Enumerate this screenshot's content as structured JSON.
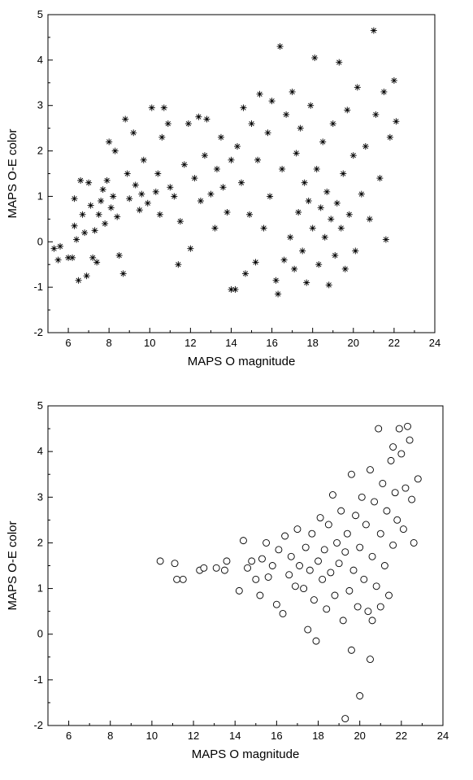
{
  "chart_data": [
    {
      "type": "scatter",
      "marker": "asterisk",
      "xlabel": "MAPS O magnitude",
      "ylabel": "MAPS O-E color",
      "xlim": [
        5,
        24
      ],
      "ylim": [
        -2,
        5
      ],
      "xticks": [
        "6",
        "8",
        "10",
        "12",
        "14",
        "16",
        "18",
        "20",
        "22",
        "24"
      ],
      "yticks": [
        "-2",
        "-1",
        "0",
        "1",
        "2",
        "3",
        "4",
        "5"
      ],
      "grid": false,
      "points": [
        [
          5.3,
          -0.15
        ],
        [
          5.5,
          -0.4
        ],
        [
          5.6,
          -0.1
        ],
        [
          6.0,
          -0.35
        ],
        [
          6.2,
          -0.35
        ],
        [
          6.3,
          0.35
        ],
        [
          6.3,
          0.95
        ],
        [
          6.4,
          0.05
        ],
        [
          6.5,
          -0.85
        ],
        [
          6.6,
          1.35
        ],
        [
          6.7,
          0.6
        ],
        [
          6.8,
          0.2
        ],
        [
          6.9,
          -0.75
        ],
        [
          7.0,
          1.3
        ],
        [
          7.1,
          0.8
        ],
        [
          7.2,
          -0.35
        ],
        [
          7.3,
          0.25
        ],
        [
          7.4,
          -0.45
        ],
        [
          7.5,
          0.6
        ],
        [
          7.6,
          0.9
        ],
        [
          7.7,
          1.15
        ],
        [
          7.8,
          0.4
        ],
        [
          7.9,
          1.35
        ],
        [
          8.0,
          2.2
        ],
        [
          8.1,
          0.75
        ],
        [
          8.2,
          1.0
        ],
        [
          8.3,
          2.0
        ],
        [
          8.4,
          0.55
        ],
        [
          8.5,
          -0.3
        ],
        [
          8.7,
          -0.7
        ],
        [
          8.8,
          2.7
        ],
        [
          8.9,
          1.5
        ],
        [
          9.0,
          0.95
        ],
        [
          9.2,
          2.4
        ],
        [
          9.3,
          1.25
        ],
        [
          9.5,
          0.7
        ],
        [
          9.6,
          1.05
        ],
        [
          9.7,
          1.8
        ],
        [
          9.9,
          0.85
        ],
        [
          10.1,
          2.95
        ],
        [
          10.3,
          1.1
        ],
        [
          10.4,
          1.5
        ],
        [
          10.5,
          0.6
        ],
        [
          10.6,
          2.3
        ],
        [
          10.7,
          2.95
        ],
        [
          10.9,
          2.6
        ],
        [
          11.0,
          1.2
        ],
        [
          11.2,
          1.0
        ],
        [
          11.4,
          -0.5
        ],
        [
          11.5,
          0.45
        ],
        [
          11.7,
          1.7
        ],
        [
          11.9,
          2.6
        ],
        [
          12.0,
          -0.15
        ],
        [
          12.2,
          1.4
        ],
        [
          12.4,
          2.75
        ],
        [
          12.5,
          0.9
        ],
        [
          12.7,
          1.9
        ],
        [
          12.8,
          2.7
        ],
        [
          13.0,
          1.05
        ],
        [
          13.2,
          0.3
        ],
        [
          13.3,
          1.6
        ],
        [
          13.5,
          2.3
        ],
        [
          13.6,
          1.2
        ],
        [
          13.8,
          0.65
        ],
        [
          14.0,
          1.8
        ],
        [
          14.0,
          -1.05
        ],
        [
          14.2,
          -1.05
        ],
        [
          14.3,
          2.1
        ],
        [
          14.5,
          1.3
        ],
        [
          14.6,
          2.95
        ],
        [
          14.7,
          -0.7
        ],
        [
          14.9,
          0.6
        ],
        [
          15.0,
          2.6
        ],
        [
          15.2,
          -0.45
        ],
        [
          15.3,
          1.8
        ],
        [
          15.4,
          3.25
        ],
        [
          15.6,
          0.3
        ],
        [
          15.8,
          2.4
        ],
        [
          15.9,
          1.0
        ],
        [
          16.0,
          3.1
        ],
        [
          16.2,
          -0.85
        ],
        [
          16.3,
          -1.15
        ],
        [
          16.4,
          4.3
        ],
        [
          16.5,
          1.6
        ],
        [
          16.6,
          -0.4
        ],
        [
          16.7,
          2.8
        ],
        [
          16.9,
          0.1
        ],
        [
          17.0,
          3.3
        ],
        [
          17.1,
          -0.6
        ],
        [
          17.2,
          1.95
        ],
        [
          17.3,
          0.65
        ],
        [
          17.4,
          2.5
        ],
        [
          17.5,
          -0.2
        ],
        [
          17.6,
          1.3
        ],
        [
          17.7,
          -0.9
        ],
        [
          17.8,
          0.9
        ],
        [
          17.9,
          3.0
        ],
        [
          18.0,
          0.3
        ],
        [
          18.1,
          4.05
        ],
        [
          18.2,
          1.6
        ],
        [
          18.3,
          -0.5
        ],
        [
          18.4,
          0.75
        ],
        [
          18.5,
          2.2
        ],
        [
          18.6,
          0.1
        ],
        [
          18.7,
          1.1
        ],
        [
          18.8,
          -0.95
        ],
        [
          18.9,
          0.5
        ],
        [
          19.0,
          2.6
        ],
        [
          19.1,
          -0.3
        ],
        [
          19.2,
          0.85
        ],
        [
          19.3,
          3.95
        ],
        [
          19.4,
          0.3
        ],
        [
          19.5,
          1.5
        ],
        [
          19.6,
          -0.6
        ],
        [
          19.7,
          2.9
        ],
        [
          19.8,
          0.6
        ],
        [
          20.0,
          1.9
        ],
        [
          20.1,
          -0.2
        ],
        [
          20.2,
          3.4
        ],
        [
          20.4,
          1.05
        ],
        [
          20.6,
          2.1
        ],
        [
          20.8,
          0.5
        ],
        [
          21.0,
          4.65
        ],
        [
          21.1,
          2.8
        ],
        [
          21.3,
          1.4
        ],
        [
          21.5,
          3.3
        ],
        [
          21.6,
          0.05
        ],
        [
          21.8,
          2.3
        ],
        [
          22.0,
          3.55
        ],
        [
          22.1,
          2.65
        ]
      ]
    },
    {
      "type": "scatter",
      "marker": "open-circle",
      "xlabel": "MAPS O magnitude",
      "ylabel": "MAPS O-E color",
      "xlim": [
        5,
        24
      ],
      "ylim": [
        -2,
        5
      ],
      "xticks": [
        "6",
        "8",
        "10",
        "12",
        "14",
        "16",
        "18",
        "20",
        "22",
        "24"
      ],
      "yticks": [
        "-2",
        "-1",
        "0",
        "1",
        "2",
        "3",
        "4",
        "5"
      ],
      "grid": false,
      "points": [
        [
          10.4,
          1.6
        ],
        [
          11.1,
          1.55
        ],
        [
          11.2,
          1.2
        ],
        [
          11.5,
          1.2
        ],
        [
          12.3,
          1.4
        ],
        [
          12.5,
          1.45
        ],
        [
          13.1,
          1.45
        ],
        [
          13.5,
          1.4
        ],
        [
          13.6,
          1.6
        ],
        [
          14.2,
          0.95
        ],
        [
          14.4,
          2.05
        ],
        [
          14.6,
          1.45
        ],
        [
          14.8,
          1.6
        ],
        [
          15.0,
          1.2
        ],
        [
          15.2,
          0.85
        ],
        [
          15.3,
          1.65
        ],
        [
          15.5,
          2.0
        ],
        [
          15.6,
          1.25
        ],
        [
          15.8,
          1.5
        ],
        [
          16.0,
          0.65
        ],
        [
          16.1,
          1.85
        ],
        [
          16.3,
          0.45
        ],
        [
          16.4,
          2.15
        ],
        [
          16.6,
          1.3
        ],
        [
          16.7,
          1.7
        ],
        [
          16.9,
          1.05
        ],
        [
          17.0,
          2.3
        ],
        [
          17.1,
          1.5
        ],
        [
          17.3,
          1.0
        ],
        [
          17.4,
          1.9
        ],
        [
          17.5,
          0.1
        ],
        [
          17.6,
          1.4
        ],
        [
          17.7,
          2.2
        ],
        [
          17.8,
          0.75
        ],
        [
          17.9,
          -0.15
        ],
        [
          18.0,
          1.6
        ],
        [
          18.1,
          2.55
        ],
        [
          18.2,
          1.2
        ],
        [
          18.3,
          1.85
        ],
        [
          18.4,
          0.55
        ],
        [
          18.5,
          2.4
        ],
        [
          18.6,
          1.35
        ],
        [
          18.7,
          3.05
        ],
        [
          18.8,
          0.85
        ],
        [
          18.9,
          2.0
        ],
        [
          19.0,
          1.55
        ],
        [
          19.1,
          2.7
        ],
        [
          19.2,
          0.3
        ],
        [
          19.3,
          1.8
        ],
        [
          19.3,
          -1.85
        ],
        [
          19.4,
          2.2
        ],
        [
          19.5,
          0.95
        ],
        [
          19.6,
          3.5
        ],
        [
          19.6,
          -0.35
        ],
        [
          19.7,
          1.4
        ],
        [
          19.8,
          2.6
        ],
        [
          19.9,
          0.6
        ],
        [
          20.0,
          1.9
        ],
        [
          20.0,
          -1.35
        ],
        [
          20.1,
          3.0
        ],
        [
          20.2,
          1.2
        ],
        [
          20.3,
          2.4
        ],
        [
          20.4,
          0.5
        ],
        [
          20.5,
          3.6
        ],
        [
          20.5,
          -0.55
        ],
        [
          20.6,
          1.7
        ],
        [
          20.7,
          2.9
        ],
        [
          20.8,
          1.05
        ],
        [
          20.9,
          4.5
        ],
        [
          21.0,
          2.2
        ],
        [
          21.1,
          3.3
        ],
        [
          21.2,
          1.5
        ],
        [
          21.3,
          2.7
        ],
        [
          21.4,
          0.85
        ],
        [
          21.5,
          3.8
        ],
        [
          21.6,
          1.95
        ],
        [
          21.7,
          3.1
        ],
        [
          21.8,
          2.5
        ],
        [
          21.9,
          4.5
        ],
        [
          22.0,
          3.95
        ],
        [
          22.1,
          2.3
        ],
        [
          22.2,
          3.2
        ],
        [
          22.3,
          4.55
        ],
        [
          22.4,
          4.25
        ],
        [
          22.5,
          2.95
        ],
        [
          22.6,
          2.0
        ],
        [
          22.8,
          3.4
        ],
        [
          21.6,
          4.1
        ],
        [
          21.0,
          0.6
        ],
        [
          20.6,
          0.3
        ]
      ]
    }
  ]
}
